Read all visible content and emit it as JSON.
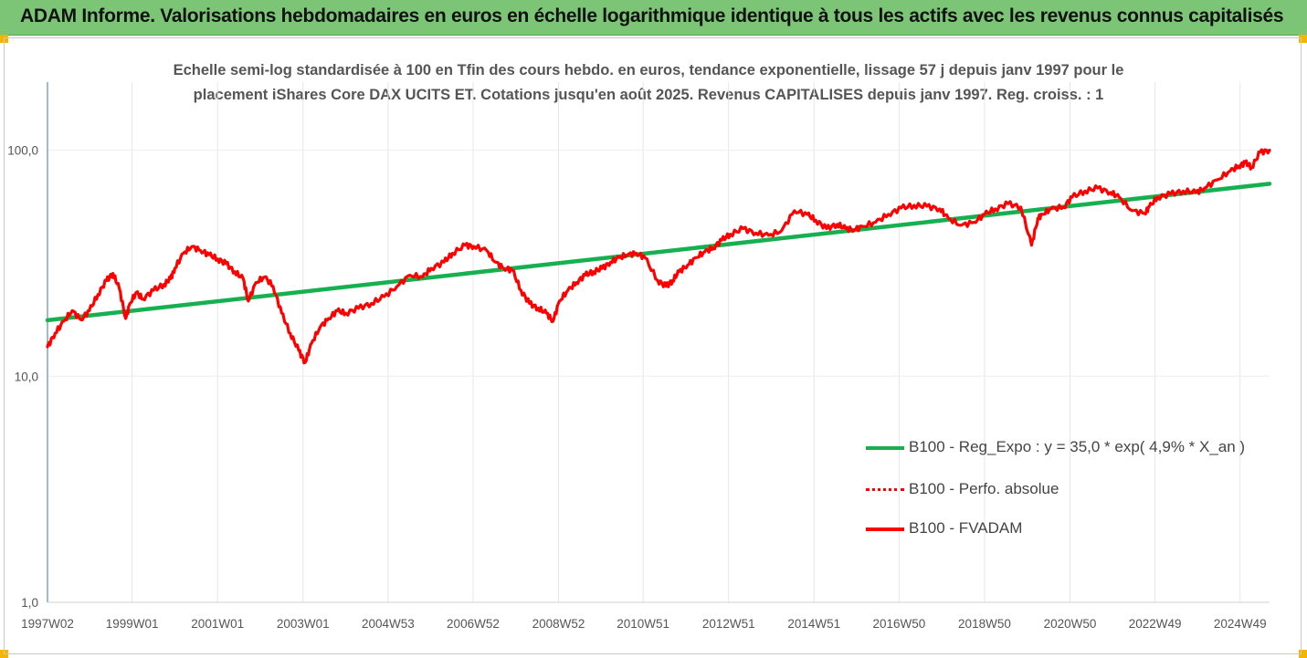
{
  "banner": {
    "title": "ADAM Informe. Valorisations hebdomadaires en euros en échelle logarithmique identique à tous les actifs avec les revenus connus capitalisés"
  },
  "chart_data": {
    "type": "line",
    "subtitle_line1": "Echelle semi-log standardisée à 100 en Tfin des cours hebdo. en euros, tendance exponentielle, lissage 57 j depuis janv 1997 pour le",
    "subtitle_line2": "placement iShares Core DAX UCITS ET. Cotations jusqu'en août 2025. Revenus CAPITALISES depuis janv 1997. Reg. croiss. : 1",
    "y_scale": "log",
    "ylim": [
      1,
      200
    ],
    "y_ticks": [
      {
        "value": 1,
        "label": "1,0"
      },
      {
        "value": 10,
        "label": "10,0"
      },
      {
        "value": 100,
        "label": "100,0"
      }
    ],
    "x_range": [
      1997.02,
      2025.62
    ],
    "x_ticks": [
      {
        "x": 1997.02,
        "label": "1997W02"
      },
      {
        "x": 1999.0,
        "label": "1999W01"
      },
      {
        "x": 2001.0,
        "label": "2001W01"
      },
      {
        "x": 2003.0,
        "label": "2003W01"
      },
      {
        "x": 2004.99,
        "label": "2004W53"
      },
      {
        "x": 2006.98,
        "label": "2006W52"
      },
      {
        "x": 2008.98,
        "label": "2008W52"
      },
      {
        "x": 2010.96,
        "label": "2010W51"
      },
      {
        "x": 2012.96,
        "label": "2012W51"
      },
      {
        "x": 2014.96,
        "label": "2014W51"
      },
      {
        "x": 2016.95,
        "label": "2016W50"
      },
      {
        "x": 2018.95,
        "label": "2018W50"
      },
      {
        "x": 2020.95,
        "label": "2020W50"
      },
      {
        "x": 2022.94,
        "label": "2022W49"
      },
      {
        "x": 2024.93,
        "label": "2024W49"
      }
    ],
    "grid": "vertical",
    "legend_position": "bottom-right",
    "series": [
      {
        "name": "B100 - Reg_Expo : y = 35,0 * exp( 4,9% *  X_an )",
        "color": "#16b050",
        "style": "solid",
        "x": [
          1997.02,
          2025.62
        ],
        "y": [
          17.7,
          71.0
        ]
      },
      {
        "name": "B100 - Perfo. absolue",
        "color": "#ff0000",
        "style": "dotted",
        "x": [],
        "y": []
      },
      {
        "name": "B100 - FVADAM",
        "color": "#ff0000",
        "style": "solid",
        "x": [
          1997.02,
          1997.2,
          1997.4,
          1997.6,
          1997.8,
          1998.0,
          1998.2,
          1998.4,
          1998.55,
          1998.7,
          1998.85,
          1998.95,
          1999.1,
          1999.25,
          1999.5,
          1999.75,
          1999.9,
          2000.0,
          2000.2,
          2000.4,
          2000.6,
          2000.8,
          2001.0,
          2001.2,
          2001.4,
          2001.6,
          2001.72,
          2001.9,
          2002.1,
          2002.3,
          2002.5,
          2002.7,
          2002.9,
          2003.05,
          2003.2,
          2003.4,
          2003.6,
          2003.8,
          2004.0,
          2004.3,
          2004.6,
          2004.9,
          2005.2,
          2005.5,
          2005.8,
          2006.0,
          2006.3,
          2006.5,
          2006.8,
          2007.0,
          2007.3,
          2007.5,
          2007.7,
          2007.9,
          2008.1,
          2008.3,
          2008.5,
          2008.7,
          2008.85,
          2009.0,
          2009.2,
          2009.4,
          2009.6,
          2009.8,
          2010.0,
          2010.2,
          2010.4,
          2010.6,
          2010.8,
          2011.0,
          2011.3,
          2011.5,
          2011.65,
          2011.8,
          2012.0,
          2012.2,
          2012.4,
          2012.6,
          2012.8,
          2013.0,
          2013.3,
          2013.6,
          2013.9,
          2014.2,
          2014.5,
          2014.8,
          2015.0,
          2015.25,
          2015.5,
          2015.7,
          2015.9,
          2016.1,
          2016.4,
          2016.7,
          2017.0,
          2017.3,
          2017.6,
          2017.9,
          2018.1,
          2018.4,
          2018.7,
          2018.95,
          2019.2,
          2019.5,
          2019.8,
          2020.05,
          2020.2,
          2020.3,
          2020.5,
          2020.8,
          2021.0,
          2021.3,
          2021.6,
          2021.9,
          2022.1,
          2022.4,
          2022.7,
          2022.8,
          2023.0,
          2023.3,
          2023.6,
          2023.9,
          2024.1,
          2024.4,
          2024.7,
          2024.9,
          2025.05,
          2025.2,
          2025.4,
          2025.62
        ],
        "y": [
          13.5,
          15.5,
          17.5,
          19.5,
          17.8,
          19.5,
          23.0,
          26.5,
          28.5,
          24.5,
          18.0,
          21.0,
          23.5,
          22.0,
          24.0,
          25.5,
          27.0,
          30.0,
          35.0,
          37.5,
          36.0,
          34.5,
          33.0,
          31.5,
          29.0,
          27.0,
          21.5,
          26.0,
          27.5,
          25.0,
          19.0,
          15.5,
          13.0,
          11.5,
          14.0,
          16.5,
          18.0,
          19.5,
          19.0,
          20.0,
          21.0,
          22.5,
          25.0,
          28.0,
          27.5,
          30.0,
          32.0,
          35.0,
          38.0,
          37.5,
          36.0,
          32.0,
          30.0,
          29.5,
          24.0,
          21.0,
          20.0,
          19.0,
          17.5,
          21.5,
          24.0,
          26.0,
          28.0,
          29.0,
          30.0,
          32.0,
          33.5,
          34.5,
          35.0,
          33.5,
          26.5,
          25.0,
          26.5,
          29.0,
          31.0,
          33.5,
          35.5,
          37.0,
          40.0,
          42.5,
          45.0,
          43.0,
          42.0,
          44.0,
          54.0,
          52.0,
          49.0,
          45.0,
          47.0,
          45.0,
          44.5,
          46.0,
          48.0,
          52.0,
          55.5,
          57.0,
          56.5,
          55.0,
          50.0,
          46.5,
          48.0,
          52.0,
          55.0,
          58.0,
          56.0,
          38.0,
          50.0,
          52.0,
          55.0,
          56.0,
          62.0,
          66.0,
          68.0,
          65.0,
          62.0,
          54.0,
          52.5,
          56.0,
          62.0,
          64.0,
          66.0,
          65.0,
          68.0,
          74.0,
          81.0,
          85.0,
          88.0,
          84.0,
          98.0,
          100.0
        ]
      }
    ]
  }
}
